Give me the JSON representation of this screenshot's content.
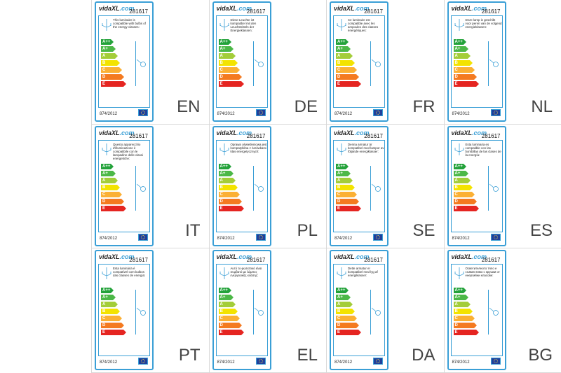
{
  "brand": {
    "name": "vidaXL",
    "suffix": ".com"
  },
  "product_code": "281617",
  "regulation": "874/2012",
  "classes": [
    {
      "label": "A++",
      "color": "#23a23a"
    },
    {
      "label": "A+",
      "color": "#4cb847"
    },
    {
      "label": "A",
      "color": "#a3cd39"
    },
    {
      "label": "B",
      "color": "#f3e300"
    },
    {
      "label": "C",
      "color": "#fbb034"
    },
    {
      "label": "D",
      "color": "#f47a20"
    },
    {
      "label": "E",
      "color": "#e52521"
    }
  ],
  "labels": [
    {
      "lang": "EN",
      "text": "This luminaire is compatible with bulbs of the energy classes:"
    },
    {
      "lang": "DE",
      "text": "Diese Leuchte ist kompatibel mit den Leuchtmitteln der Energieklassen:"
    },
    {
      "lang": "FR",
      "text": "Ce luminaire est compatible avec les ampoules des classes énergétiques:"
    },
    {
      "lang": "NL",
      "text": "Deze lamp is geschikt voor peren van de volgend energieklassen:"
    },
    {
      "lang": "IT",
      "text": "Questo apparecchio d'illuminazione è compatibile con le lampadine delle classi energetiche:"
    },
    {
      "lang": "PL",
      "text": "Oprawa oświetleniowa jest kompatybilna z żarówkami klas energetycznych:"
    },
    {
      "lang": "SE",
      "text": "Denna armatur är kompatibel med lampor av följande energiklasser:"
    },
    {
      "lang": "ES",
      "text": "Esta luminaria es compatible con las bombillas de las clases de la energía:"
    },
    {
      "lang": "PT",
      "text": "Esta luminária é compatível com bulbos das classes de energia:"
    },
    {
      "lang": "EL",
      "text": "Αυτό το φωτιστικό είναι συμβατό με λάμπες ενεργειακής κλάσης:"
    },
    {
      "lang": "DA",
      "text": "Dette armatur er kompatibel med lyg af energiklasser:"
    },
    {
      "lang": "BG",
      "text": "Осветителното тяло е съвместимо с крушки от енергийни класове:"
    }
  ]
}
